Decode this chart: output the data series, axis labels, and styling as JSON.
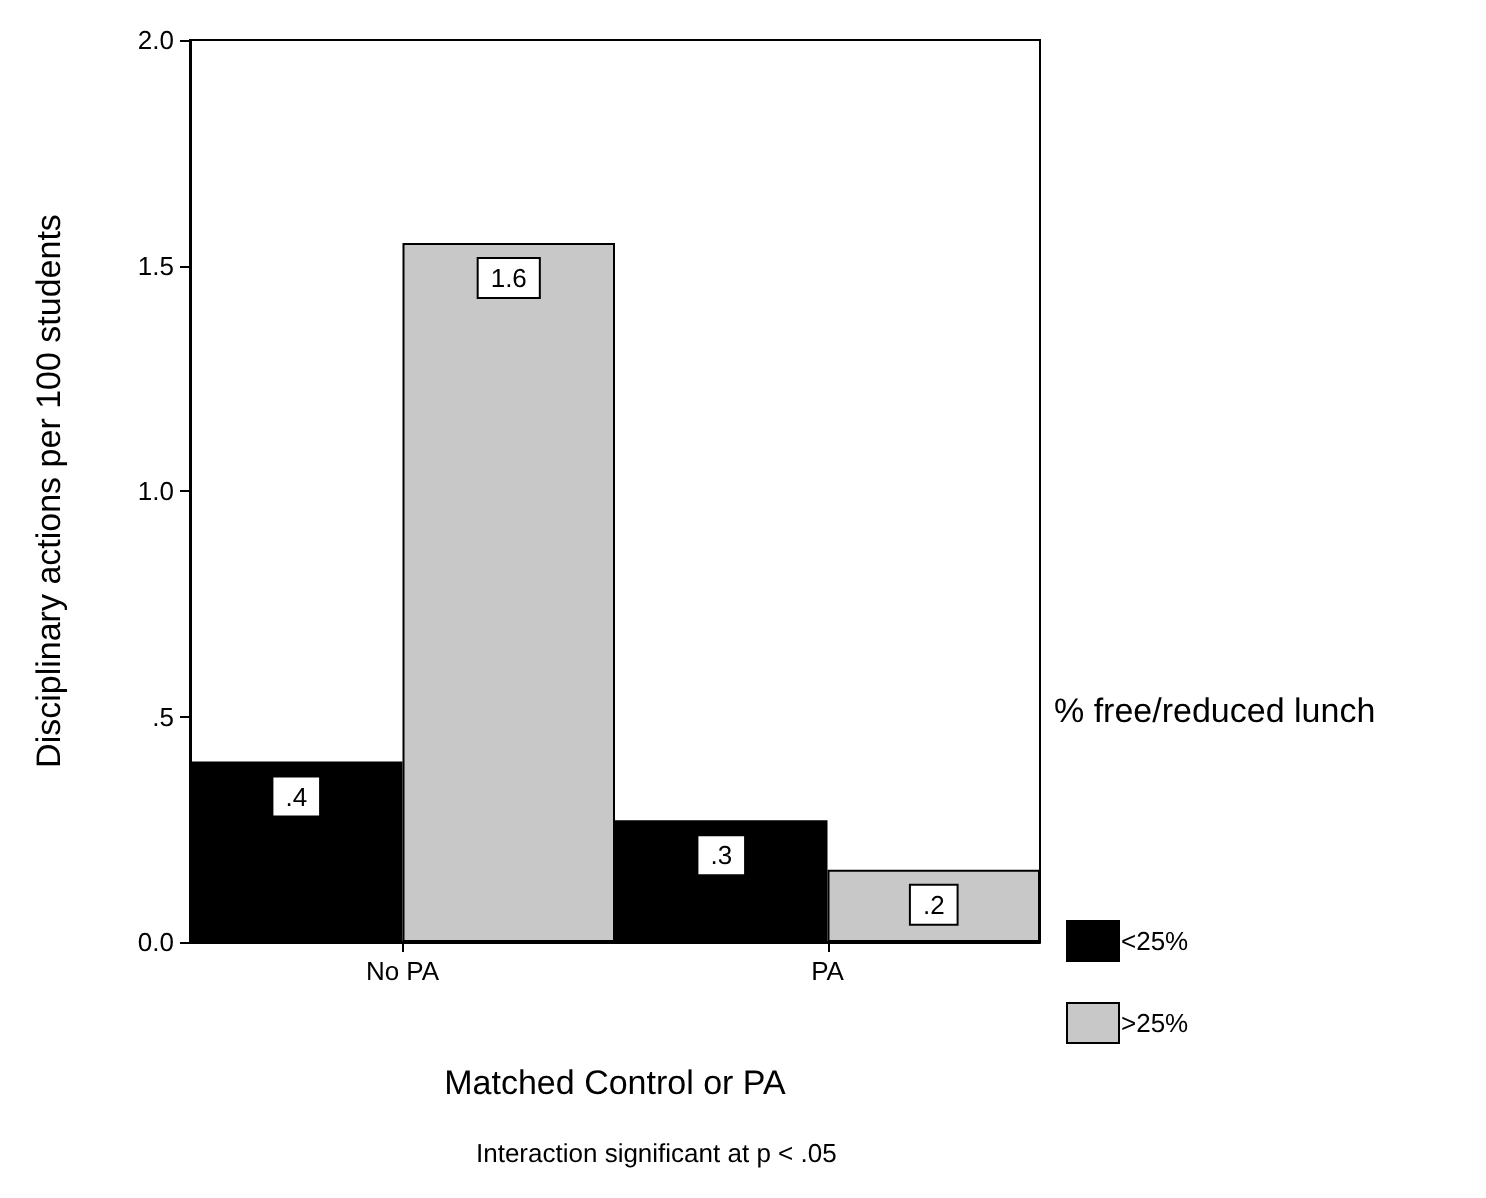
{
  "chart_data": {
    "type": "bar",
    "xlabel": "Matched Control or PA",
    "ylabel": "Disciplinary actions per 100 students",
    "legend_title": "% free/reduced lunch",
    "categories": [
      "No PA",
      "PA"
    ],
    "series": [
      {
        "name": "<25%",
        "color": "#000000",
        "values": [
          0.4,
          0.27
        ],
        "value_labels": [
          ".4",
          ".3"
        ]
      },
      {
        "name": ">25%",
        "color": "#c8c8c8",
        "values": [
          1.55,
          0.16
        ],
        "value_labels": [
          "1.6",
          ".2"
        ]
      }
    ],
    "ylim": [
      0,
      2
    ],
    "yticks": [
      {
        "value": 0,
        "label": "0.0"
      },
      {
        "value": 0.5,
        "label": ".5"
      },
      {
        "value": 1,
        "label": "1.0"
      },
      {
        "value": 1.5,
        "label": "1.5"
      },
      {
        "value": 2,
        "label": "2.0"
      }
    ],
    "grid": false,
    "legend": "right",
    "annotations": [
      "Interaction significant at p < .05"
    ]
  }
}
